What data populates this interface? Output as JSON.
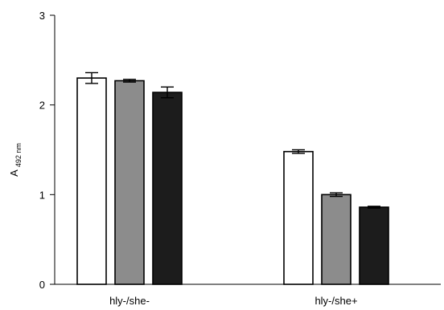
{
  "chart_data": {
    "type": "bar",
    "title": "",
    "xlabel": "",
    "ylabel": "A",
    "ylabel_subscript": "492 nm",
    "ylim": [
      0,
      3
    ],
    "yticks": [
      0,
      1,
      2,
      3
    ],
    "categories": [
      "hly-/she-",
      "hly-/she+"
    ],
    "series": [
      {
        "values": [
          2.3,
          1.48
        ],
        "errors": [
          0.06,
          0.02
        ],
        "color": "#ffffff"
      },
      {
        "values": [
          2.27,
          1.0
        ],
        "errors": [
          0.015,
          0.02
        ],
        "color": "#8c8c8c"
      },
      {
        "values": [
          2.14,
          0.86
        ],
        "errors": [
          0.06,
          0.01
        ],
        "color": "#1c1c1c"
      }
    ],
    "grid": false,
    "legend": "none"
  }
}
